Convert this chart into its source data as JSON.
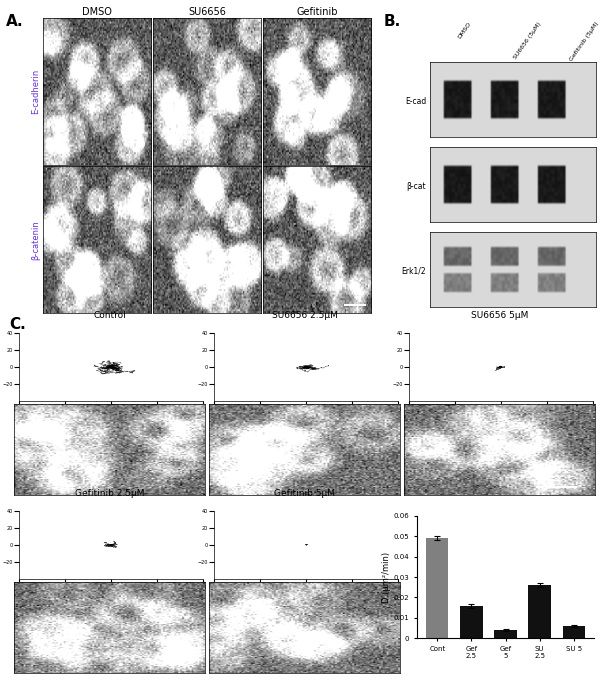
{
  "bar_values": [
    0.049,
    0.016,
    0.004,
    0.026,
    0.006
  ],
  "bar_errors": [
    0.001,
    0.001,
    0.0005,
    0.001,
    0.0005
  ],
  "bar_colors": [
    "#808080",
    "#111111",
    "#111111",
    "#111111",
    "#111111"
  ],
  "bar_labels": [
    "Cont",
    "Gef\n2.5",
    "Gef\n5",
    "SU\n2.5",
    "SU 5"
  ],
  "ylabel": "D (μm²/min)",
  "ylim": [
    0,
    0.06
  ],
  "yticks": [
    0,
    0.01,
    0.02,
    0.03,
    0.04,
    0.05,
    0.06
  ],
  "ytick_labels": [
    "0",
    "0.01",
    "0.02",
    "0.03",
    "0.04",
    "0.05",
    "0.06"
  ],
  "panel_A_label": "A.",
  "panel_B_label": "B.",
  "panel_C_label": "C.",
  "panel_A_col_labels": [
    "DMSO",
    "SU6656",
    "Gefitinib"
  ],
  "panel_A_row_labels": [
    "E-cadherin",
    "β-catenin"
  ],
  "panel_B_row_labels": [
    "E-cad",
    "β-cat",
    "Erk1/2"
  ],
  "panel_B_col_labels": [
    "DMSO",
    "SU6656 (5μM)",
    "Gefitinib (5μM)"
  ],
  "panel_C_top_labels": [
    "Control",
    "SU6656 2.5μM",
    "SU6656 5μM"
  ],
  "panel_C_bottom_labels": [
    "Gefitinib 2.5μM",
    "Gefitinib 5μM"
  ],
  "background_color": "#ffffff"
}
